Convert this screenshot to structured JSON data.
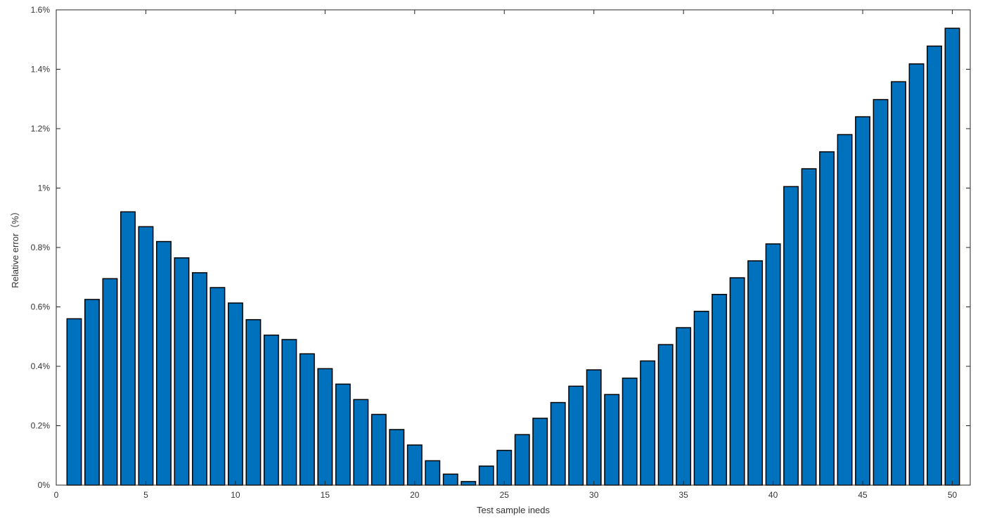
{
  "chart_data": {
    "type": "bar",
    "xlabel": "Test sample ineds",
    "ylabel": "Relative error（%）",
    "x": [
      1,
      2,
      3,
      4,
      5,
      6,
      7,
      8,
      9,
      10,
      11,
      12,
      13,
      14,
      15,
      16,
      17,
      18,
      19,
      20,
      21,
      22,
      23,
      24,
      25,
      26,
      27,
      28,
      29,
      30,
      31,
      32,
      33,
      34,
      35,
      36,
      37,
      38,
      39,
      40,
      41,
      42,
      43,
      44,
      45,
      46,
      47,
      48,
      49,
      50
    ],
    "values": [
      0.56,
      0.625,
      0.695,
      0.92,
      0.87,
      0.82,
      0.765,
      0.715,
      0.665,
      0.613,
      0.557,
      0.505,
      0.49,
      0.442,
      0.392,
      0.34,
      0.288,
      0.238,
      0.187,
      0.135,
      0.082,
      0.037,
      0.012,
      0.064,
      0.117,
      0.17,
      0.225,
      0.278,
      0.333,
      0.388,
      0.305,
      0.36,
      0.418,
      0.473,
      0.53,
      0.585,
      0.642,
      0.698,
      0.755,
      0.812,
      1.005,
      1.065,
      1.122,
      1.18,
      1.24,
      1.298,
      1.358,
      1.418,
      1.478,
      1.538
    ],
    "xlim": [
      0,
      51
    ],
    "ylim": [
      0,
      1.6
    ],
    "xticks": [
      0,
      5,
      10,
      15,
      20,
      25,
      30,
      35,
      40,
      45,
      50
    ],
    "xtick_labels": [
      "0",
      "5",
      "10",
      "15",
      "20",
      "25",
      "30",
      "35",
      "40",
      "45",
      "50"
    ],
    "yticks": [
      0,
      0.2,
      0.4,
      0.6,
      0.8,
      1.0,
      1.2,
      1.4,
      1.6
    ],
    "ytick_labels": [
      "0%",
      "0.2%",
      "0.4%",
      "0.6%",
      "0.8%",
      "1%",
      "1.2%",
      "1.4%",
      "1.6%"
    ],
    "grid": false,
    "colors": {
      "bar_fill": "#0072BD",
      "bar_edge": "#000000",
      "axis": "#262626"
    }
  }
}
